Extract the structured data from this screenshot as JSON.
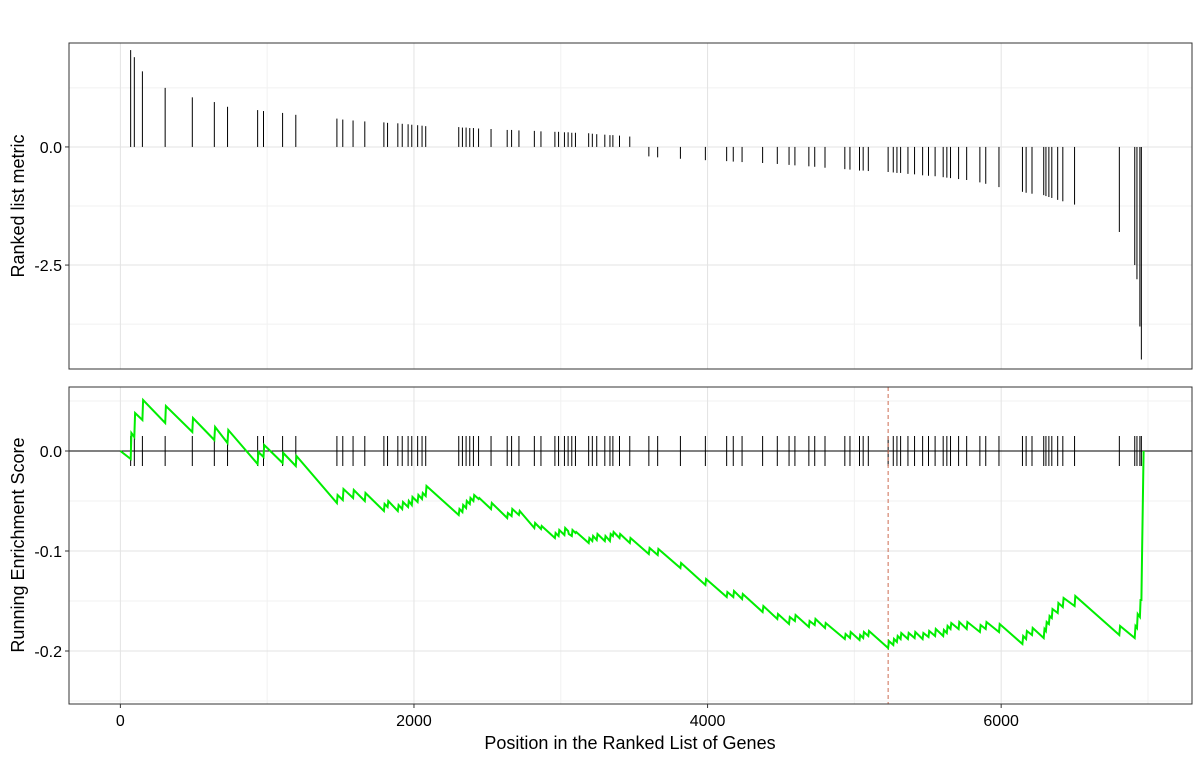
{
  "chart_data": [
    {
      "type": "bar",
      "role": "ranked-list-metric",
      "ylabel": "Ranked list metric",
      "xlim": [
        -350,
        7300
      ],
      "ylim": [
        -4.7,
        2.2
      ],
      "yticks": [
        0.0,
        -2.5
      ],
      "ytick_labels": [
        "0.0",
        "-2.5"
      ],
      "grid": true,
      "bar_color": "#000000",
      "hits": [
        {
          "x": 70,
          "y": 2.05
        },
        {
          "x": 95,
          "y": 1.9
        },
        {
          "x": 150,
          "y": 1.6
        },
        {
          "x": 305,
          "y": 1.25
        },
        {
          "x": 490,
          "y": 1.05
        },
        {
          "x": 640,
          "y": 0.95
        },
        {
          "x": 730,
          "y": 0.85
        },
        {
          "x": 935,
          "y": 0.78
        },
        {
          "x": 975,
          "y": 0.76
        },
        {
          "x": 1105,
          "y": 0.72
        },
        {
          "x": 1195,
          "y": 0.68
        },
        {
          "x": 1475,
          "y": 0.6
        },
        {
          "x": 1515,
          "y": 0.58
        },
        {
          "x": 1585,
          "y": 0.56
        },
        {
          "x": 1665,
          "y": 0.54
        },
        {
          "x": 1795,
          "y": 0.52
        },
        {
          "x": 1820,
          "y": 0.51
        },
        {
          "x": 1890,
          "y": 0.5
        },
        {
          "x": 1920,
          "y": 0.49
        },
        {
          "x": 1960,
          "y": 0.48
        },
        {
          "x": 1985,
          "y": 0.47
        },
        {
          "x": 2025,
          "y": 0.46
        },
        {
          "x": 2055,
          "y": 0.45
        },
        {
          "x": 2080,
          "y": 0.44
        },
        {
          "x": 2305,
          "y": 0.42
        },
        {
          "x": 2330,
          "y": 0.41
        },
        {
          "x": 2355,
          "y": 0.41
        },
        {
          "x": 2380,
          "y": 0.4
        },
        {
          "x": 2405,
          "y": 0.4
        },
        {
          "x": 2440,
          "y": 0.39
        },
        {
          "x": 2525,
          "y": 0.38
        },
        {
          "x": 2635,
          "y": 0.36
        },
        {
          "x": 2665,
          "y": 0.36
        },
        {
          "x": 2715,
          "y": 0.35
        },
        {
          "x": 2820,
          "y": 0.34
        },
        {
          "x": 2865,
          "y": 0.33
        },
        {
          "x": 2960,
          "y": 0.32
        },
        {
          "x": 2985,
          "y": 0.32
        },
        {
          "x": 3025,
          "y": 0.31
        },
        {
          "x": 3050,
          "y": 0.31
        },
        {
          "x": 3075,
          "y": 0.3
        },
        {
          "x": 3100,
          "y": 0.3
        },
        {
          "x": 3190,
          "y": 0.29
        },
        {
          "x": 3215,
          "y": 0.28
        },
        {
          "x": 3245,
          "y": 0.27
        },
        {
          "x": 3300,
          "y": 0.26
        },
        {
          "x": 3335,
          "y": 0.25
        },
        {
          "x": 3355,
          "y": 0.25
        },
        {
          "x": 3400,
          "y": 0.24
        },
        {
          "x": 3470,
          "y": 0.22
        },
        {
          "x": 3600,
          "y": -0.2
        },
        {
          "x": 3660,
          "y": -0.22
        },
        {
          "x": 3815,
          "y": -0.25
        },
        {
          "x": 3985,
          "y": -0.28
        },
        {
          "x": 4130,
          "y": -0.3
        },
        {
          "x": 4175,
          "y": -0.31
        },
        {
          "x": 4235,
          "y": -0.32
        },
        {
          "x": 4375,
          "y": -0.34
        },
        {
          "x": 4475,
          "y": -0.36
        },
        {
          "x": 4555,
          "y": -0.38
        },
        {
          "x": 4595,
          "y": -0.39
        },
        {
          "x": 4690,
          "y": -0.41
        },
        {
          "x": 4730,
          "y": -0.42
        },
        {
          "x": 4800,
          "y": -0.44
        },
        {
          "x": 4935,
          "y": -0.47
        },
        {
          "x": 4970,
          "y": -0.48
        },
        {
          "x": 5035,
          "y": -0.5
        },
        {
          "x": 5060,
          "y": -0.5
        },
        {
          "x": 5095,
          "y": -0.51
        },
        {
          "x": 5230,
          "y": -0.53
        },
        {
          "x": 5265,
          "y": -0.54
        },
        {
          "x": 5290,
          "y": -0.55
        },
        {
          "x": 5315,
          "y": -0.55
        },
        {
          "x": 5365,
          "y": -0.57
        },
        {
          "x": 5410,
          "y": -0.58
        },
        {
          "x": 5465,
          "y": -0.6
        },
        {
          "x": 5505,
          "y": -0.61
        },
        {
          "x": 5550,
          "y": -0.62
        },
        {
          "x": 5605,
          "y": -0.64
        },
        {
          "x": 5630,
          "y": -0.65
        },
        {
          "x": 5655,
          "y": -0.66
        },
        {
          "x": 5710,
          "y": -0.68
        },
        {
          "x": 5765,
          "y": -0.7
        },
        {
          "x": 5855,
          "y": -0.75
        },
        {
          "x": 5895,
          "y": -0.78
        },
        {
          "x": 5985,
          "y": -0.85
        },
        {
          "x": 6145,
          "y": -0.95
        },
        {
          "x": 6170,
          "y": -0.97
        },
        {
          "x": 6210,
          "y": -0.99
        },
        {
          "x": 6290,
          "y": -1.02
        },
        {
          "x": 6305,
          "y": -1.04
        },
        {
          "x": 6325,
          "y": -1.06
        },
        {
          "x": 6345,
          "y": -1.08
        },
        {
          "x": 6385,
          "y": -1.12
        },
        {
          "x": 6420,
          "y": -1.15
        },
        {
          "x": 6500,
          "y": -1.22
        },
        {
          "x": 6805,
          "y": -1.8
        },
        {
          "x": 6910,
          "y": -2.5
        },
        {
          "x": 6925,
          "y": -2.8
        },
        {
          "x": 6945,
          "y": -3.8
        },
        {
          "x": 6955,
          "y": -4.5
        }
      ]
    },
    {
      "type": "line",
      "role": "running-enrichment-score",
      "ylabel": "Running Enrichment Score",
      "xlabel": "Position in the Ranked List of Genes",
      "xlim": [
        -350,
        7300
      ],
      "ylim": [
        -0.253,
        0.064
      ],
      "xticks": [
        0,
        2000,
        4000,
        6000
      ],
      "xtick_labels": [
        "0",
        "2000",
        "4000",
        "6000"
      ],
      "yticks": [
        0.0,
        -0.1,
        -0.2
      ],
      "ytick_labels": [
        "0.0",
        "-0.1",
        "-0.2"
      ],
      "grid": true,
      "line_color": "#00ee00",
      "zero_line_color": "#000000",
      "max_deviation_x": 5230,
      "max_deviation_line_color": "#cd6b52",
      "hit_tick_half_height": 0.015,
      "series": [
        {
          "x": [
            0,
            70,
            75,
            95,
            100,
            150,
            155,
            305,
            310,
            490,
            495,
            640,
            645,
            730,
            735,
            935,
            940,
            975,
            980,
            1105,
            1110,
            1195,
            1200,
            1475,
            1480,
            1515,
            1520,
            1585,
            1590,
            1665,
            1670,
            1795,
            1800,
            1820,
            1825,
            1890,
            1895,
            1920,
            1925,
            1960,
            1965,
            1985,
            1990,
            2025,
            2030,
            2055,
            2060,
            2080,
            2085,
            2305,
            2310,
            2330,
            2335,
            2355,
            2360,
            2380,
            2385,
            2405,
            2410,
            2440,
            2445,
            2525,
            2530,
            2635,
            2640,
            2665,
            2670,
            2715,
            2720,
            2820,
            2825,
            2865,
            2870,
            2960,
            2965,
            2985,
            2990,
            3025,
            3030,
            3050,
            3055,
            3075,
            3080,
            3100,
            3105,
            3190,
            3195,
            3215,
            3220,
            3245,
            3250,
            3300,
            3305,
            3335,
            3340,
            3355,
            3360,
            3400,
            3405,
            3470,
            3475,
            3600,
            3605,
            3660,
            3665,
            3815,
            3820,
            3985,
            3990,
            4130,
            4135,
            4175,
            4180,
            4235,
            4240,
            4375,
            4380,
            4475,
            4480,
            4555,
            4560,
            4595,
            4600,
            4690,
            4695,
            4730,
            4735,
            4800,
            4805,
            4935,
            4940,
            4970,
            4975,
            5035,
            5040,
            5060,
            5065,
            5095,
            5100,
            5230,
            5235,
            5265,
            5270,
            5290,
            5295,
            5315,
            5320,
            5365,
            5370,
            5410,
            5415,
            5465,
            5470,
            5505,
            5510,
            5550,
            5555,
            5605,
            5610,
            5630,
            5635,
            5655,
            5660,
            5710,
            5715,
            5765,
            5770,
            5855,
            5860,
            5895,
            5900,
            5985,
            5990,
            6145,
            6150,
            6170,
            6175,
            6210,
            6215,
            6290,
            6295,
            6305,
            6310,
            6325,
            6330,
            6345,
            6350,
            6385,
            6390,
            6420,
            6425,
            6500,
            6505,
            6805,
            6810,
            6910,
            6915,
            6925,
            6930,
            6945,
            6950,
            6955,
            6960
          ],
          "y": [
            0.0,
            -0.008,
            0.018,
            0.014,
            0.038,
            0.031,
            0.051,
            0.028,
            0.045,
            0.019,
            0.033,
            0.011,
            0.024,
            0.008,
            0.021,
            -0.013,
            -0.001,
            -0.006,
            0.006,
            -0.012,
            -0.002,
            -0.015,
            -0.005,
            -0.052,
            -0.044,
            -0.049,
            -0.038,
            -0.047,
            -0.039,
            -0.05,
            -0.042,
            -0.06,
            -0.053,
            -0.056,
            -0.05,
            -0.06,
            -0.054,
            -0.058,
            -0.051,
            -0.056,
            -0.05,
            -0.054,
            -0.046,
            -0.051,
            -0.044,
            -0.048,
            -0.042,
            -0.045,
            -0.035,
            -0.064,
            -0.058,
            -0.061,
            -0.054,
            -0.057,
            -0.05,
            -0.053,
            -0.047,
            -0.05,
            -0.044,
            -0.048,
            -0.047,
            -0.058,
            -0.052,
            -0.067,
            -0.062,
            -0.065,
            -0.058,
            -0.064,
            -0.06,
            -0.077,
            -0.072,
            -0.078,
            -0.075,
            -0.087,
            -0.082,
            -0.085,
            -0.079,
            -0.084,
            -0.077,
            -0.08,
            -0.083,
            -0.085,
            -0.079,
            -0.082,
            -0.081,
            -0.092,
            -0.087,
            -0.09,
            -0.085,
            -0.089,
            -0.083,
            -0.09,
            -0.085,
            -0.09,
            -0.083,
            -0.085,
            -0.081,
            -0.087,
            -0.083,
            -0.092,
            -0.087,
            -0.103,
            -0.097,
            -0.104,
            -0.098,
            -0.117,
            -0.112,
            -0.134,
            -0.128,
            -0.146,
            -0.141,
            -0.146,
            -0.14,
            -0.148,
            -0.143,
            -0.161,
            -0.155,
            -0.168,
            -0.163,
            -0.173,
            -0.166,
            -0.17,
            -0.164,
            -0.176,
            -0.17,
            -0.174,
            -0.168,
            -0.177,
            -0.172,
            -0.188,
            -0.183,
            -0.187,
            -0.181,
            -0.189,
            -0.184,
            -0.187,
            -0.181,
            -0.185,
            -0.18,
            -0.197,
            -0.19,
            -0.194,
            -0.188,
            -0.191,
            -0.185,
            -0.188,
            -0.182,
            -0.188,
            -0.182,
            -0.187,
            -0.181,
            -0.188,
            -0.182,
            -0.186,
            -0.18,
            -0.185,
            -0.178,
            -0.185,
            -0.179,
            -0.182,
            -0.175,
            -0.178,
            -0.172,
            -0.178,
            -0.171,
            -0.178,
            -0.171,
            -0.181,
            -0.174,
            -0.178,
            -0.171,
            -0.181,
            -0.173,
            -0.193,
            -0.185,
            -0.188,
            -0.18,
            -0.184,
            -0.177,
            -0.187,
            -0.178,
            -0.18,
            -0.171,
            -0.173,
            -0.165,
            -0.167,
            -0.158,
            -0.162,
            -0.152,
            -0.156,
            -0.147,
            -0.155,
            -0.145,
            -0.184,
            -0.175,
            -0.187,
            -0.175,
            -0.177,
            -0.163,
            -0.166,
            -0.148,
            -0.15,
            -0.1
          ]
        }
      ],
      "tail": {
        "x": [
          6960,
          6970
        ],
        "y": [
          -0.1,
          0.0
        ]
      }
    }
  ]
}
